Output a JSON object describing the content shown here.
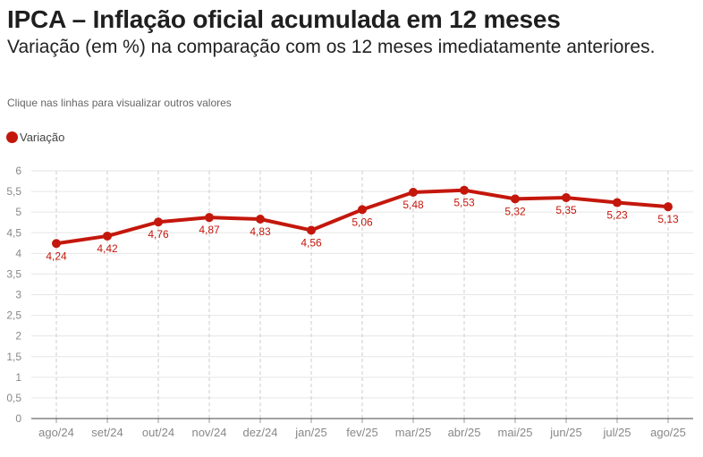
{
  "header": {
    "title": "IPCA – Inflação oficial acumulada em 12 meses",
    "subtitle": "Variação (em %) na comparação com os 12 meses imediatamente anteriores.",
    "hint": "Clique nas linhas para visualizar outros valores"
  },
  "legend": {
    "label": "Variação",
    "color": "#c4170c"
  },
  "chart_data": {
    "type": "line",
    "title": "IPCA – Inflação oficial acumulada em 12 meses",
    "subtitle": "Variação (em %) na comparação com os 12 meses imediatamente anteriores.",
    "xlabel": "",
    "ylabel": "",
    "categories": [
      "ago/24",
      "set/24",
      "out/24",
      "nov/24",
      "dez/24",
      "jan/25",
      "fev/25",
      "mar/25",
      "abr/25",
      "mai/25",
      "jun/25",
      "jul/25",
      "ago/25"
    ],
    "series": [
      {
        "name": "Variação",
        "color": "#c4170c",
        "values": [
          4.24,
          4.42,
          4.76,
          4.87,
          4.83,
          4.56,
          5.06,
          5.48,
          5.53,
          5.32,
          5.35,
          5.23,
          5.13
        ],
        "labels": [
          "4,24",
          "4,42",
          "4,76",
          "4,87",
          "4,83",
          "4,56",
          "5,06",
          "5,48",
          "5,53",
          "5,32",
          "5,35",
          "5,23",
          "5,13"
        ]
      }
    ],
    "ylim": [
      0,
      6
    ],
    "yticks": [
      "0",
      "0,5",
      "1",
      "1,5",
      "2",
      "2,5",
      "3",
      "3,5",
      "4",
      "4,5",
      "5",
      "5,5",
      "6"
    ],
    "grid": true,
    "legend_position": "top-left"
  }
}
